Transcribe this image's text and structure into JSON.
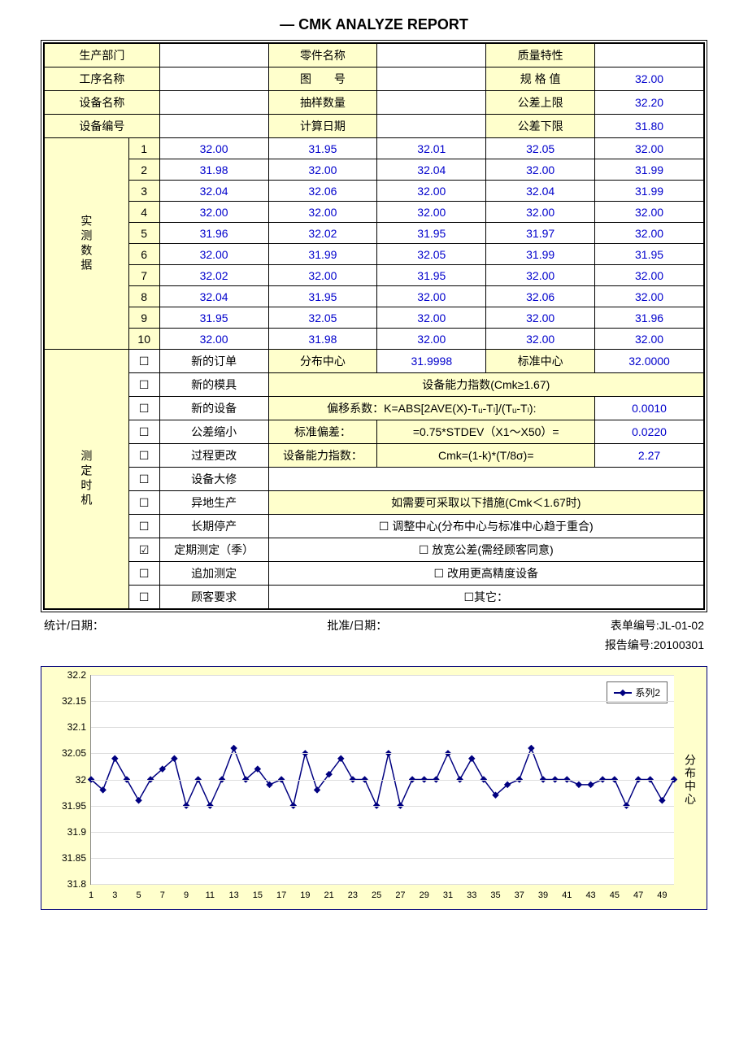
{
  "title": "— CMK ANALYZE REPORT",
  "header": {
    "r1": {
      "a": "生产部门",
      "aval": "",
      "b": "零件名称",
      "bval": "",
      "c": "质量特性",
      "cval": ""
    },
    "r2": {
      "a": "工序名称",
      "aval": "",
      "b": "图　　号",
      "bval": "",
      "c": "规 格 值",
      "cval": "32.00"
    },
    "r3": {
      "a": "设备名称",
      "aval": "",
      "b": "抽样数量",
      "bval": "",
      "c": "公差上限",
      "cval": "32.20"
    },
    "r4": {
      "a": "设备编号",
      "aval": "",
      "b": "计算日期",
      "bval": "",
      "c": "公差下限",
      "cval": "31.80"
    }
  },
  "data_label": "实测数据",
  "data_rows": [
    {
      "n": "1",
      "c": [
        "32.00",
        "31.95",
        "32.01",
        "32.05",
        "32.00"
      ]
    },
    {
      "n": "2",
      "c": [
        "31.98",
        "32.00",
        "32.04",
        "32.00",
        "31.99"
      ]
    },
    {
      "n": "3",
      "c": [
        "32.04",
        "32.06",
        "32.00",
        "32.04",
        "31.99"
      ]
    },
    {
      "n": "4",
      "c": [
        "32.00",
        "32.00",
        "32.00",
        "32.00",
        "32.00"
      ]
    },
    {
      "n": "5",
      "c": [
        "31.96",
        "32.02",
        "31.95",
        "31.97",
        "32.00"
      ]
    },
    {
      "n": "6",
      "c": [
        "32.00",
        "31.99",
        "32.05",
        "31.99",
        "31.95"
      ]
    },
    {
      "n": "7",
      "c": [
        "32.02",
        "32.00",
        "31.95",
        "32.00",
        "32.00"
      ]
    },
    {
      "n": "8",
      "c": [
        "32.04",
        "31.95",
        "32.00",
        "32.06",
        "32.00"
      ]
    },
    {
      "n": "9",
      "c": [
        "31.95",
        "32.05",
        "32.00",
        "32.00",
        "31.96"
      ]
    },
    {
      "n": "10",
      "c": [
        "32.00",
        "31.98",
        "32.00",
        "32.00",
        "32.00"
      ]
    }
  ],
  "timing_label": "测定时机",
  "options": [
    {
      "chk": "☐",
      "txt": "新的订单"
    },
    {
      "chk": "☐",
      "txt": "新的模具"
    },
    {
      "chk": "☐",
      "txt": "新的设备"
    },
    {
      "chk": "☐",
      "txt": "公差缩小"
    },
    {
      "chk": "☐",
      "txt": "过程更改"
    },
    {
      "chk": "☐",
      "txt": "设备大修"
    },
    {
      "chk": "☐",
      "txt": "异地生产"
    },
    {
      "chk": "☐",
      "txt": "长期停产"
    },
    {
      "chk": "☑",
      "txt": "定期测定（季）"
    },
    {
      "chk": "☐",
      "txt": "追加测定"
    },
    {
      "chk": "☐",
      "txt": "顾客要求"
    }
  ],
  "calc": {
    "row1": {
      "a": "分布中心",
      "aval": "31.9998",
      "b": "标准中心",
      "bval": "32.0000"
    },
    "title1": "设备能力指数(Cmk≥1.67)",
    "k_row": {
      "lbl": "偏移系数：K=ABS[2AVE(X)-Tᵤ-Tₗ]/(Tᵤ-Tₗ):",
      "val": "0.0010"
    },
    "s_row": {
      "lbl": "标准偏差：",
      "formula": "=0.75*STDEV（X1～X50）=",
      "val": "0.0220"
    },
    "cmk_row": {
      "lbl": "设备能力指数：",
      "formula": "Cmk=(1-k)*(T/8σ)=",
      "val": "2.27"
    },
    "title2": "如需要可采取以下措施(Cmk＜1.67时)",
    "m1": "☐ 调整中心(分布中心与标准中心趋于重合)",
    "m2": "☐ 放宽公差(需经顾客同意)",
    "m3": "☐ 改用更高精度设备",
    "m4": "☐其它："
  },
  "footer": {
    "stat": "统计/日期：",
    "approve": "批准/日期：",
    "form_no": "表单编号:JL-01-02",
    "report_no": "报告编号:20100301"
  },
  "chart": {
    "ylim": [
      31.8,
      32.2
    ],
    "ytick_step": 0.05,
    "yticks": [
      "31.8",
      "31.85",
      "31.9",
      "31.95",
      "32",
      "32.05",
      "32.1",
      "32.15",
      "32.2"
    ],
    "x_count": 50,
    "xticks": [
      1,
      3,
      5,
      7,
      9,
      11,
      13,
      15,
      17,
      19,
      21,
      23,
      25,
      27,
      29,
      31,
      33,
      35,
      37,
      39,
      41,
      43,
      45,
      47,
      49
    ],
    "series_name": "系列2",
    "axis_label_right": "分布中心",
    "line_color": "#000080",
    "marker_color": "#000080",
    "bg_color": "#ffffcc",
    "data": [
      32.0,
      31.98,
      32.04,
      32.0,
      31.96,
      32.0,
      32.02,
      32.04,
      31.95,
      32.0,
      31.95,
      32.0,
      32.06,
      32.0,
      32.02,
      31.99,
      32.0,
      31.95,
      32.05,
      31.98,
      32.01,
      32.04,
      32.0,
      32.0,
      31.95,
      32.05,
      31.95,
      32.0,
      32.0,
      32.0,
      32.05,
      32.0,
      32.04,
      32.0,
      31.97,
      31.99,
      32.0,
      32.06,
      32.0,
      32.0,
      32.0,
      31.99,
      31.99,
      32.0,
      32.0,
      31.95,
      32.0,
      32.0,
      31.96,
      32.0
    ]
  }
}
